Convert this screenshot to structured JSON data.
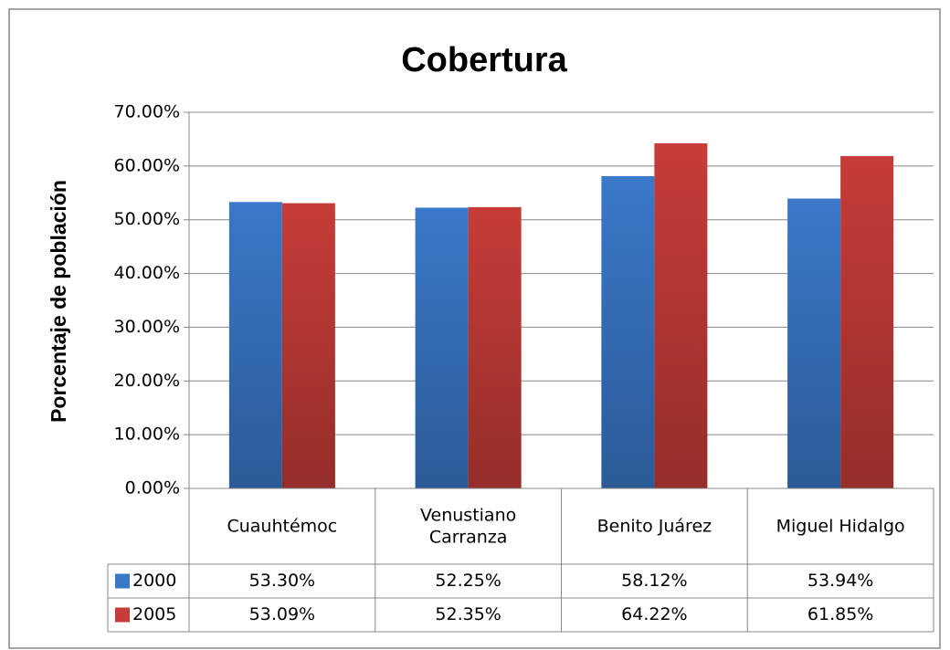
{
  "chart_data": {
    "type": "bar",
    "title": "Cobertura",
    "y_label": "Porcentaje de población",
    "categories": [
      "Cuauhtémoc",
      "Venustiano Carranza",
      "Benito Juárez",
      "Miguel Hidalgo"
    ],
    "series": [
      {
        "name": "2000",
        "color": "#3a78c9",
        "values": [
          53.3,
          52.25,
          58.12,
          53.94
        ],
        "value_labels": [
          "53.30%",
          "52.25%",
          "58.12%",
          "53.94%"
        ]
      },
      {
        "name": "2005",
        "color": "#c63c38",
        "values": [
          53.09,
          52.35,
          64.22,
          61.85
        ],
        "value_labels": [
          "53.09%",
          "52.35%",
          "64.22%",
          "61.85%"
        ]
      }
    ],
    "ylim": [
      0,
      70
    ],
    "yticks": [
      {
        "value": 0,
        "label": "0.00%"
      },
      {
        "value": 10,
        "label": "10.00%"
      },
      {
        "value": 20,
        "label": "20.00%"
      },
      {
        "value": 30,
        "label": "30.00%"
      },
      {
        "value": 40,
        "label": "40.00%"
      },
      {
        "value": 50,
        "label": "50.00%"
      },
      {
        "value": 60,
        "label": "60.00%"
      },
      {
        "value": 70,
        "label": "70.00%"
      }
    ],
    "grid": true
  }
}
